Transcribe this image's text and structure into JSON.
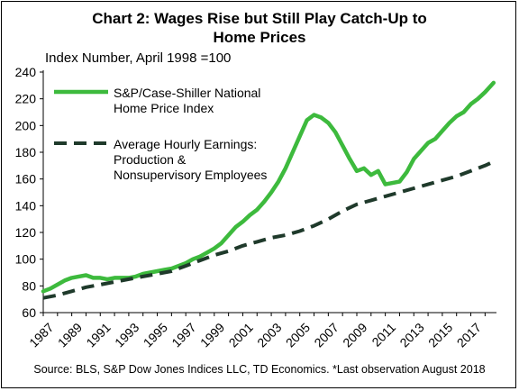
{
  "title_line1": "Chart 2: Wages Rise but Still Play Catch-Up to",
  "title_line2": "Home Prices",
  "subtitle": "Index Number, April 1998 =100",
  "source": "Source: BLS, S&P Dow Jones Indices LLC, TD Economics. *Last observation August 2018",
  "colors": {
    "home": "#3dba3d",
    "wages": "#1f3a2b"
  },
  "chart_data": {
    "type": "line",
    "title": "Chart 2: Wages Rise but Still Play Catch-Up to Home Prices",
    "ylabel": "Index Number, April 1998 =100",
    "xlabel": "",
    "ylim": [
      60,
      240
    ],
    "xlim": [
      1987,
      2018.8
    ],
    "yticks": [
      60,
      80,
      100,
      120,
      140,
      160,
      180,
      200,
      220,
      240
    ],
    "xticks": [
      "1987",
      "1989",
      "1991",
      "1993",
      "1995",
      "1997",
      "1999",
      "2001",
      "2003",
      "2005",
      "2007",
      "2009",
      "2011",
      "2013",
      "2015",
      "2017"
    ],
    "grid": false,
    "legend_position": "top-left",
    "series": [
      {
        "name": "S&P/Case-Shiller National Home Price Index",
        "label_lines": [
          "S&P/Case-Shiller National",
          "Home Price Index"
        ],
        "style": "solid",
        "x": [
          1987,
          1987.5,
          1988,
          1988.5,
          1989,
          1989.5,
          1990,
          1990.5,
          1991,
          1991.5,
          1992,
          1992.5,
          1993,
          1993.5,
          1994,
          1994.5,
          1995,
          1995.5,
          1996,
          1996.5,
          1997,
          1997.5,
          1998,
          1998.5,
          1999,
          1999.5,
          2000,
          2000.5,
          2001,
          2001.5,
          2002,
          2002.5,
          2003,
          2003.5,
          2004,
          2004.5,
          2005,
          2005.5,
          2006,
          2006.5,
          2007,
          2007.5,
          2008,
          2008.5,
          2009,
          2009.5,
          2010,
          2010.5,
          2011,
          2011.5,
          2012,
          2012.5,
          2013,
          2013.5,
          2014,
          2014.5,
          2015,
          2015.5,
          2016,
          2016.5,
          2017,
          2017.5,
          2018,
          2018.6
        ],
        "values": [
          76,
          78,
          81,
          84,
          86,
          87,
          88,
          86,
          86,
          85,
          86,
          86,
          86,
          87,
          89,
          90,
          91,
          92,
          93,
          95,
          97,
          100,
          102,
          105,
          108,
          112,
          118,
          124,
          128,
          133,
          137,
          143,
          150,
          158,
          168,
          180,
          192,
          204,
          208,
          206,
          202,
          195,
          185,
          175,
          166,
          168,
          163,
          166,
          156,
          157,
          158,
          165,
          175,
          181,
          187,
          190,
          196,
          202,
          207,
          210,
          216,
          220,
          225,
          232
        ]
      },
      {
        "name": "Average Hourly Earnings: Production & Nonsupervisory Employees",
        "label_lines": [
          "Average Hourly Earnings:",
          "Production &",
          "Nonsupervisory Employees"
        ],
        "style": "dashed",
        "x": [
          1987,
          1988,
          1989,
          1990,
          1991,
          1992,
          1993,
          1994,
          1995,
          1996,
          1997,
          1998,
          1999,
          2000,
          2001,
          2002,
          2003,
          2004,
          2005,
          2006,
          2007,
          2008,
          2009,
          2010,
          2011,
          2012,
          2013,
          2014,
          2015,
          2016,
          2017,
          2018,
          2018.6
        ],
        "values": [
          71,
          73,
          76,
          79,
          81,
          83,
          85,
          87,
          89,
          91,
          95,
          99,
          103,
          106,
          110,
          113,
          116,
          118,
          121,
          125,
          130,
          136,
          141,
          144,
          147,
          150,
          153,
          156,
          159,
          162,
          166,
          170,
          173
        ]
      }
    ]
  }
}
